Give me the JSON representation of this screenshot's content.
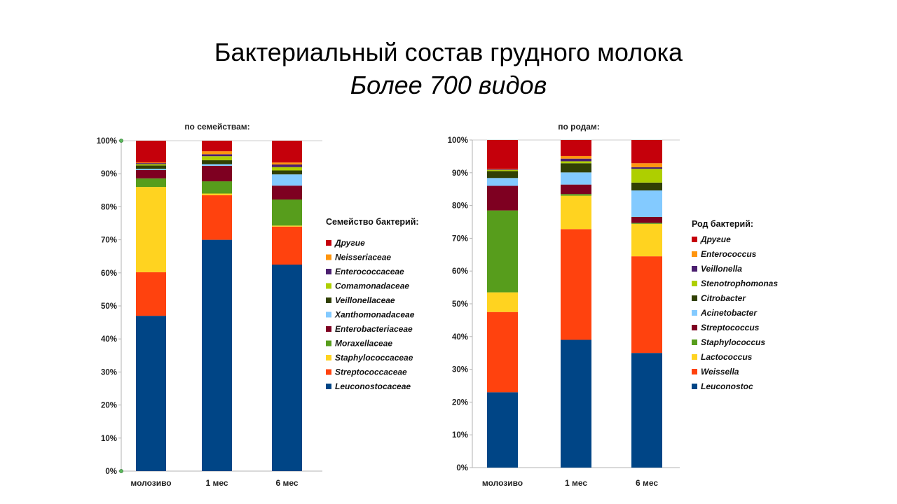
{
  "slide": {
    "title": "Бактериальный состав грудного молока",
    "subtitle": "Более 700 видов"
  },
  "chart_data": [
    {
      "type": "bar",
      "stacked": true,
      "title": "по семействам:",
      "legend_title": "Семейство бактерий:",
      "legend_position": "right",
      "grid": false,
      "categories": [
        "молозиво",
        "1 мес",
        "6 мес"
      ],
      "ylim": [
        0,
        100
      ],
      "yticks": [
        "0%",
        "10%",
        "20%",
        "30%",
        "40%",
        "50%",
        "60%",
        "70%",
        "80%",
        "90%",
        "100%"
      ],
      "series": [
        {
          "name": "Leuconostocaceae",
          "color": "#004586",
          "values": [
            47,
            70,
            62.5
          ]
        },
        {
          "name": "Streptococcaceae",
          "color": "#ff420e",
          "values": [
            13.2,
            13.5,
            11.5
          ]
        },
        {
          "name": "Staphylococcaceae",
          "color": "#ffd320",
          "values": [
            25.8,
            0.5,
            0.3
          ]
        },
        {
          "name": "Moraxellaceae",
          "color": "#579d1c",
          "values": [
            2.6,
            3.7,
            7.9
          ]
        },
        {
          "name": "Enterobacteriaceae",
          "color": "#7e0021",
          "values": [
            2.5,
            4.7,
            4.2
          ]
        },
        {
          "name": "Xanthomonadaceae",
          "color": "#83caff",
          "values": [
            0.4,
            0.5,
            3.4
          ]
        },
        {
          "name": "Veillonellaceae",
          "color": "#314004",
          "values": [
            1.0,
            1.2,
            1.2
          ]
        },
        {
          "name": "Comamonadaceae",
          "color": "#aecf00",
          "values": [
            0.4,
            1.2,
            1.0
          ]
        },
        {
          "name": "Enterococcaceae",
          "color": "#4b1f6f",
          "values": [
            0.3,
            0.6,
            0.8
          ]
        },
        {
          "name": "Neisseriaceae",
          "color": "#ff950e",
          "values": [
            0.2,
            0.9,
            0.6
          ]
        },
        {
          "name": "Другие",
          "color": "#c5000b",
          "values": [
            6.6,
            3.2,
            6.6
          ]
        }
      ]
    },
    {
      "type": "bar",
      "stacked": true,
      "title": "по родам:",
      "legend_title": "Род бактерий:",
      "legend_position": "right",
      "grid": false,
      "categories": [
        "молозиво",
        "1 мес",
        "6 мес"
      ],
      "ylim": [
        0,
        100
      ],
      "yticks": [
        "0%",
        "10%",
        "20%",
        "30%",
        "40%",
        "50%",
        "60%",
        "70%",
        "80%",
        "90%",
        "100%"
      ],
      "series": [
        {
          "name": "Leuconostoc",
          "color": "#004586",
          "values": [
            23,
            39,
            35
          ]
        },
        {
          "name": "Weissella",
          "color": "#ff420e",
          "values": [
            24.5,
            33.8,
            29.5
          ]
        },
        {
          "name": "Lactococcus",
          "color": "#ffd320",
          "values": [
            6,
            10.2,
            9.9
          ]
        },
        {
          "name": "Staphylococcus",
          "color": "#579d1c",
          "values": [
            25,
            0.5,
            0.3
          ]
        },
        {
          "name": "Streptococcus",
          "color": "#7e0021",
          "values": [
            7.5,
            2.9,
            1.8
          ]
        },
        {
          "name": "Acinetobacter",
          "color": "#83caff",
          "values": [
            2.4,
            3.7,
            8.1
          ]
        },
        {
          "name": "Citrobacter",
          "color": "#314004",
          "values": [
            2.1,
            2.8,
            2.4
          ]
        },
        {
          "name": "Stenotrophomonas",
          "color": "#aecf00",
          "values": [
            0.3,
            0.6,
            4.2
          ]
        },
        {
          "name": "Veillonella",
          "color": "#4b1f6f",
          "values": [
            0.2,
            0.8,
            0.5
          ]
        },
        {
          "name": "Enterococcus",
          "color": "#ff950e",
          "values": [
            0.2,
            0.8,
            1.2
          ]
        },
        {
          "name": "Другие",
          "color": "#c5000b",
          "values": [
            8.8,
            4.9,
            7.1
          ]
        }
      ]
    }
  ]
}
